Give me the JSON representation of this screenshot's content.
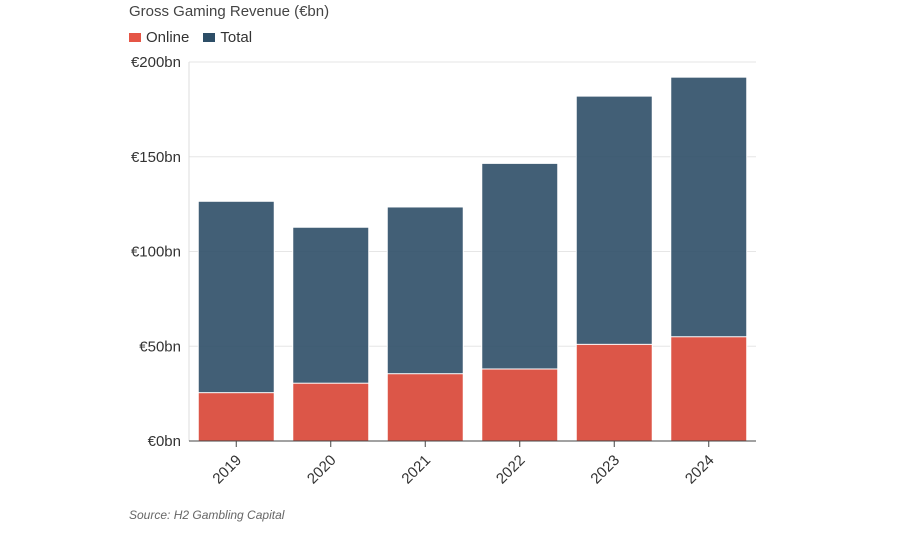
{
  "chart_data": {
    "type": "bar",
    "stacked": false,
    "overlay": true,
    "title": "Gross Gaming Revenue (€bn)",
    "categories": [
      "2019",
      "2020",
      "2021",
      "2022",
      "2023",
      "2024"
    ],
    "series": [
      {
        "name": "Total",
        "color": "#2d4e67",
        "values": [
          126.5,
          112.8,
          123.5,
          146.5,
          182,
          192
        ]
      },
      {
        "name": "Online",
        "color": "#e55546",
        "values": [
          25.5,
          30.5,
          35.5,
          38,
          51,
          55
        ]
      }
    ],
    "yticks": [
      {
        "value": 0,
        "label": "€0bn"
      },
      {
        "value": 50,
        "label": "€50bn"
      },
      {
        "value": 100,
        "label": "€100bn"
      },
      {
        "value": 150,
        "label": "€150bn"
      },
      {
        "value": 200,
        "label": "€200bn"
      }
    ],
    "ylim": [
      0,
      200
    ],
    "xlabel": "",
    "ylabel": "",
    "legend": [
      {
        "label": "Online",
        "color": "#e55546"
      },
      {
        "label": "Total",
        "color": "#2d4e67"
      }
    ],
    "source": "Source: H2 Gambling Capital"
  }
}
